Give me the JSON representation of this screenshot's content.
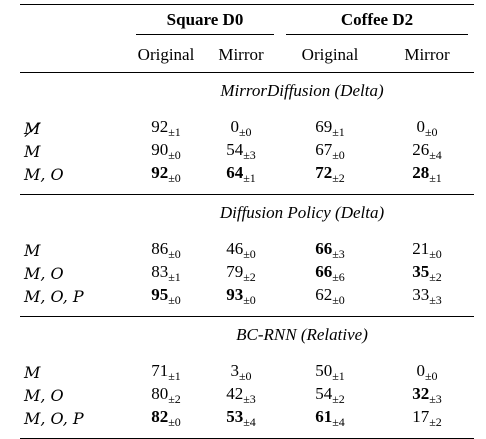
{
  "header": {
    "groups": [
      "Square D0",
      "Coffee D2"
    ],
    "subcols": [
      "Original",
      "Mirror",
      "Original",
      "Mirror"
    ]
  },
  "sections": [
    {
      "title": "MirrorDiffusion (Delta)",
      "rows": [
        {
          "label": "M",
          "struck": true,
          "cells": [
            [
              "92",
              "±1",
              false
            ],
            [
              "0",
              "±0",
              false
            ],
            [
              "69",
              "±1",
              false
            ],
            [
              "0",
              "±0",
              false
            ]
          ]
        },
        {
          "label": "M",
          "struck": false,
          "cells": [
            [
              "90",
              "±0",
              false
            ],
            [
              "54",
              "±3",
              false
            ],
            [
              "67",
              "±0",
              false
            ],
            [
              "26",
              "±4",
              false
            ]
          ]
        },
        {
          "label": "M, O",
          "struck": false,
          "cells": [
            [
              "92",
              "±0",
              true
            ],
            [
              "64",
              "±1",
              true
            ],
            [
              "72",
              "±2",
              true
            ],
            [
              "28",
              "±1",
              true
            ]
          ]
        }
      ]
    },
    {
      "title": "Diffusion Policy (Delta)",
      "rows": [
        {
          "label": "M",
          "struck": false,
          "cells": [
            [
              "86",
              "±0",
              false
            ],
            [
              "46",
              "±0",
              false
            ],
            [
              "66",
              "±3",
              true
            ],
            [
              "21",
              "±0",
              false
            ]
          ]
        },
        {
          "label": "M, O",
          "struck": false,
          "cells": [
            [
              "83",
              "±1",
              false
            ],
            [
              "79",
              "±2",
              false
            ],
            [
              "66",
              "±6",
              true
            ],
            [
              "35",
              "±2",
              true
            ]
          ]
        },
        {
          "label": "M, O, P",
          "struck": false,
          "cells": [
            [
              "95",
              "±0",
              true
            ],
            [
              "93",
              "±0",
              true
            ],
            [
              "62",
              "±0",
              false
            ],
            [
              "33",
              "±3",
              false
            ]
          ]
        }
      ]
    },
    {
      "title": "BC-RNN (Relative)",
      "rows": [
        {
          "label": "M",
          "struck": false,
          "cells": [
            [
              "71",
              "±1",
              false
            ],
            [
              "3",
              "±0",
              false
            ],
            [
              "50",
              "±1",
              false
            ],
            [
              "0",
              "±0",
              false
            ]
          ]
        },
        {
          "label": "M, O",
          "struck": false,
          "cells": [
            [
              "80",
              "±2",
              false
            ],
            [
              "42",
              "±3",
              false
            ],
            [
              "54",
              "±2",
              false
            ],
            [
              "32",
              "±3",
              true
            ]
          ]
        },
        {
          "label": "M, O, P",
          "struck": false,
          "cells": [
            [
              "82",
              "±0",
              true
            ],
            [
              "53",
              "±4",
              true
            ],
            [
              "61",
              "±4",
              true
            ],
            [
              "17",
              "±2",
              false
            ]
          ]
        }
      ]
    }
  ]
}
